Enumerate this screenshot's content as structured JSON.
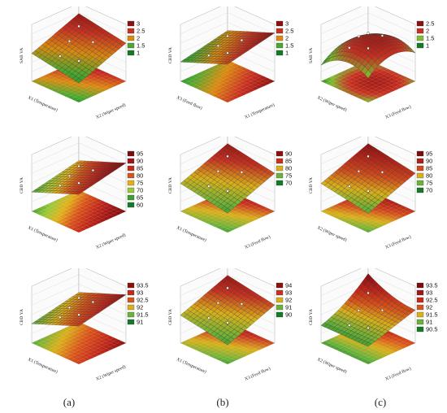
{
  "figure": {
    "column_labels": [
      "(a)",
      "(b)",
      "(c)"
    ]
  },
  "chart_data": [
    {
      "type": "surface3d",
      "row": 1,
      "col": 1,
      "zlabel": "SAB VA",
      "xlabel": "X2 (Wiper speed)",
      "ylabel": "X1 (Temperature)",
      "legend": [
        "3",
        "2.5",
        "2",
        "1.5",
        "1"
      ],
      "legend_colors": [
        "#8b1010",
        "#c83020",
        "#d98a10",
        "#4aa830",
        "#137a28"
      ],
      "surface": {
        "min": 1,
        "max": 3,
        "tilt": "rises-right"
      }
    },
    {
      "type": "surface3d",
      "row": 1,
      "col": 2,
      "zlabel": "CBD VA",
      "xlabel": "X1 (Temperature)",
      "ylabel": "X3 (Feed flow)",
      "legend": [
        "3",
        "2.5",
        "2",
        "1.5",
        "1"
      ],
      "legend_colors": [
        "#8b1010",
        "#c83020",
        "#d98a10",
        "#4aa830",
        "#137a28"
      ],
      "surface": {
        "min": 1,
        "max": 3.5,
        "tilt": "rises-back"
      }
    },
    {
      "type": "surface3d",
      "row": 1,
      "col": 3,
      "zlabel": "SAB VA",
      "xlabel": "X3 (Feed flow)",
      "ylabel": "X2 (Wiper speed)",
      "legend": [
        "2.5",
        "2",
        "1.5",
        "1"
      ],
      "legend_colors": [
        "#8b1010",
        "#c83020",
        "#7fbf30",
        "#137a28"
      ],
      "surface": {
        "min": 1,
        "max": 3,
        "tilt": "dome"
      }
    },
    {
      "type": "surface3d",
      "row": 2,
      "col": 1,
      "zlabel": "CBD YA",
      "xlabel": "X2 (Wiper speed)",
      "ylabel": "X1 (Temperature)",
      "legend": [
        "95",
        "90",
        "85",
        "80",
        "75",
        "70",
        "65",
        "60"
      ],
      "legend_colors": [
        "#7a0d0d",
        "#9e1515",
        "#c22a1a",
        "#d9541a",
        "#e2b11a",
        "#9ac83a",
        "#3d9e2e",
        "#137a28"
      ],
      "surface": {
        "min": 60,
        "max": 95,
        "tilt": "rises-back"
      }
    },
    {
      "type": "surface3d",
      "row": 2,
      "col": 2,
      "zlabel": "CBD YA",
      "xlabel": "X3 (Feed flow)",
      "ylabel": "X1 (Temperature)",
      "legend": [
        "90",
        "85",
        "80",
        "75",
        "70"
      ],
      "legend_colors": [
        "#8b1010",
        "#c83020",
        "#d9b01a",
        "#6cb23a",
        "#137a28"
      ],
      "surface": {
        "min": 70,
        "max": 95,
        "tilt": "rises-right"
      }
    },
    {
      "type": "surface3d",
      "row": 2,
      "col": 3,
      "zlabel": "CBD YA",
      "xlabel": "X3 (Feed flow)",
      "ylabel": "X2 (Wiper speed)",
      "legend": [
        "95",
        "90",
        "85",
        "80",
        "75",
        "70"
      ],
      "legend_colors": [
        "#7a0d0d",
        "#b02018",
        "#d04a1c",
        "#d9b01a",
        "#6cb23a",
        "#137a28"
      ],
      "surface": {
        "min": 70,
        "max": 100,
        "tilt": "rises-right"
      }
    },
    {
      "type": "surface3d",
      "row": 3,
      "col": 1,
      "zlabel": "CBD YA",
      "xlabel": "X2 (Wiper speed)",
      "ylabel": "X1 (Temperature)",
      "legend": [
        "93.5",
        "93",
        "92.5",
        "92",
        "91.5",
        "91"
      ],
      "legend_colors": [
        "#8b1010",
        "#c22a1a",
        "#d9541a",
        "#d9b01a",
        "#6cb23a",
        "#137a28"
      ],
      "surface": {
        "min": 91,
        "max": 94,
        "tilt": "rises-back"
      }
    },
    {
      "type": "surface3d",
      "row": 3,
      "col": 2,
      "zlabel": "CBD YA",
      "xlabel": "X3 (Feed flow)",
      "ylabel": "X1 (Temperature)",
      "legend": [
        "94",
        "93",
        "92",
        "91",
        "90"
      ],
      "legend_colors": [
        "#8b1010",
        "#c83020",
        "#d9b01a",
        "#6cb23a",
        "#137a28"
      ],
      "surface": {
        "min": 90,
        "max": 95,
        "tilt": "rises-right"
      }
    },
    {
      "type": "surface3d",
      "row": 3,
      "col": 3,
      "zlabel": "CBD YA",
      "xlabel": "X3 (Feed flow)",
      "ylabel": "X2 (Wiper speed)",
      "legend": [
        "93.5",
        "93",
        "92.5",
        "92",
        "91.5",
        "91",
        "90.5"
      ],
      "legend_colors": [
        "#7a0d0d",
        "#a01818",
        "#c22a1a",
        "#d9541a",
        "#d9b01a",
        "#6cb23a",
        "#137a28"
      ],
      "surface": {
        "min": 90.5,
        "max": 94,
        "tilt": "curl"
      }
    }
  ]
}
